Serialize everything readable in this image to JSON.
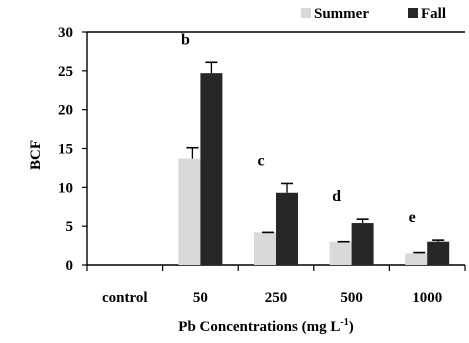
{
  "chart_data": {
    "type": "bar",
    "title": "",
    "xlabel": "Pb Concentrations  (mg L",
    "xlabel_superscript": "-1",
    "xlabel_close": ")",
    "ylabel": "BCF",
    "ylim": [
      0,
      30
    ],
    "yticks": [
      0,
      5,
      10,
      15,
      20,
      25,
      30
    ],
    "categories": [
      "control",
      "50",
      "250",
      "500",
      "1000"
    ],
    "series": [
      {
        "name": "Summer",
        "color": "#d9d9d9",
        "values": [
          0,
          13.7,
          4.2,
          3.0,
          1.5
        ],
        "errors": [
          0,
          1.4,
          0,
          0,
          0.1
        ]
      },
      {
        "name": "Fall",
        "color": "#262626",
        "values": [
          0,
          24.7,
          9.3,
          5.4,
          3.0
        ],
        "errors": [
          0,
          1.4,
          1.2,
          0.5,
          0.2
        ]
      }
    ],
    "significance_letters": [
      "",
      "b",
      "c",
      "d",
      "e"
    ],
    "legend": {
      "position": "top-right"
    },
    "grid": false
  }
}
